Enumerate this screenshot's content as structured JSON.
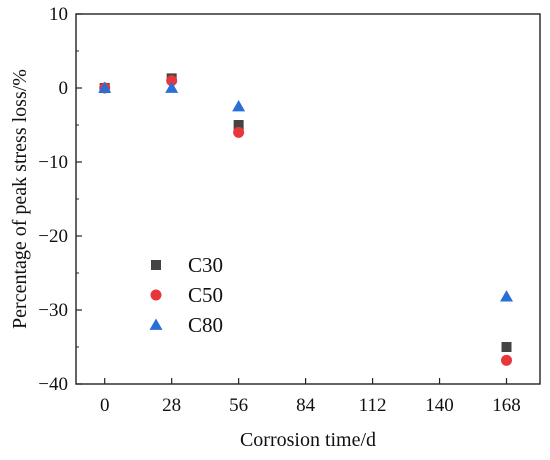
{
  "chart_data": {
    "type": "scatter",
    "title": "",
    "xlabel": "Corrosion time/d",
    "ylabel": "Percentage of peak stress loss/%",
    "xlim": [
      -12,
      182
    ],
    "ylim": [
      -40,
      10
    ],
    "xticks": [
      0,
      28,
      56,
      84,
      112,
      140,
      168
    ],
    "yticks": [
      10,
      0,
      -10,
      -20,
      -30,
      -40
    ],
    "grid": false,
    "legend_position": "center-left",
    "x": [
      0,
      28,
      56,
      168
    ],
    "series": [
      {
        "name": "C30",
        "marker": "square",
        "color": "#444444",
        "values": [
          0,
          1.3,
          -5.0,
          -35.0
        ]
      },
      {
        "name": "C50",
        "marker": "circle",
        "color": "#e8373a",
        "values": [
          0,
          1.0,
          -6.0,
          -36.8
        ]
      },
      {
        "name": "C80",
        "marker": "triangle",
        "color": "#2a6fd6",
        "values": [
          0,
          0,
          -2.5,
          -28.2
        ]
      }
    ]
  }
}
